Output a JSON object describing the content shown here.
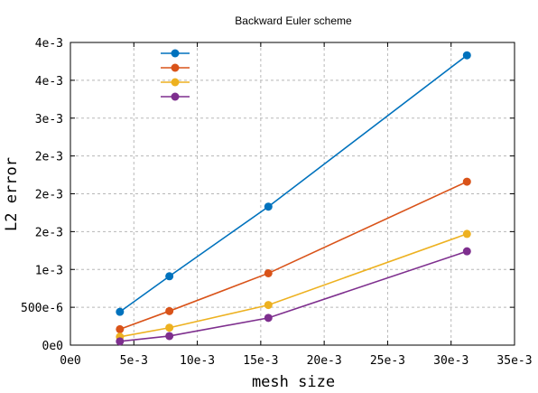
{
  "chart_data": {
    "type": "line",
    "title": "Backward Euler scheme",
    "xlabel": "mesh size",
    "ylabel": "L2 error",
    "xlim": [
      0,
      0.035
    ],
    "ylim": [
      0,
      0.004
    ],
    "x_ticks": [
      0,
      0.005,
      0.01,
      0.015,
      0.02,
      0.025,
      0.03,
      0.035
    ],
    "x_tick_labels": [
      "0e0",
      "5e-3",
      "10e-3",
      "15e-3",
      "20e-3",
      "25e-3",
      "30e-3",
      "35e-3"
    ],
    "y_ticks": [
      0,
      0.0005,
      0.001,
      0.0015,
      0.002,
      0.0025,
      0.003,
      0.0035,
      0.004
    ],
    "y_tick_labels": [
      "0e0",
      "500e-6",
      "1e-3",
      "2e-3",
      "2e-3",
      "2e-3",
      "3e-3",
      "4e-3",
      "4e-3"
    ],
    "grid": true,
    "legend": "top-left",
    "series": [
      {
        "color": "#0072bd",
        "x": [
          0.0039,
          0.0078,
          0.0156,
          0.03125
        ],
        "y": [
          0.00044,
          0.00091,
          0.00183,
          0.00383
        ]
      },
      {
        "color": "#d95319",
        "x": [
          0.0039,
          0.0078,
          0.0156,
          0.03125
        ],
        "y": [
          0.00021,
          0.00045,
          0.00095,
          0.00216
        ]
      },
      {
        "color": "#edb120",
        "x": [
          0.0039,
          0.0078,
          0.0156,
          0.03125
        ],
        "y": [
          0.00011,
          0.00023,
          0.00053,
          0.00147
        ]
      },
      {
        "color": "#7e2f8e",
        "x": [
          0.0039,
          0.0078,
          0.0156,
          0.03125
        ],
        "y": [
          5e-05,
          0.00012,
          0.00036,
          0.00124
        ]
      }
    ]
  }
}
